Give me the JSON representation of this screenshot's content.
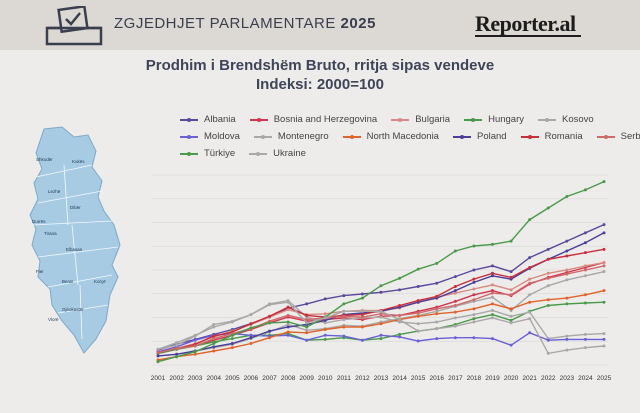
{
  "header": {
    "title_main": "ZGJEDHJET PARLAMENTARE ",
    "title_year": "2025",
    "brand": "Reporter.al",
    "ballot_icon": "ballot-box-icon"
  },
  "map": {
    "icon": "albania-map-icon",
    "regions": [
      "Shkodër",
      "Kukës",
      "Lezhë",
      "Dibër",
      "Durrës",
      "Tirana",
      "Elbasan",
      "Fier",
      "Berat",
      "Korçë",
      "Gjirokastër",
      "Vlorë"
    ],
    "fill_color": "#a8cbe4"
  },
  "chart_data": {
    "type": "line",
    "title": "Prodhim i Brendshëm Bruto, rritja sipas vendeve",
    "subtitle": "Indeksi: 2000=100",
    "xlabel": "",
    "ylabel": "",
    "grid": true,
    "legend_position": "top",
    "x": [
      "2001",
      "2002",
      "2003",
      "2004",
      "2005",
      "2006",
      "2007",
      "2008",
      "2009",
      "2010",
      "2011",
      "2012",
      "2013",
      "2014",
      "2015",
      "2016",
      "2017",
      "2018",
      "2019",
      "2020",
      "2021",
      "2022",
      "2023",
      "2024",
      "2025"
    ],
    "series": [
      {
        "name": "Albania",
        "color": "#5a4a9e",
        "values": [
          108,
          115,
          121,
          127,
          133,
          140,
          148,
          159,
          164,
          170,
          174,
          176,
          178,
          181,
          185,
          189,
          197,
          205,
          210,
          203,
          220,
          230,
          240,
          250,
          260
        ]
      },
      {
        "name": "Bosnia and Herzegovina",
        "color": "#d6334d",
        "values": [
          104,
          109,
          113,
          120,
          126,
          133,
          141,
          148,
          143,
          145,
          147,
          145,
          149,
          150,
          155,
          160,
          167,
          175,
          180,
          174,
          188,
          196,
          202,
          208,
          214
        ]
      },
      {
        "name": "Bulgaria",
        "color": "#d98a80",
        "values": [
          105,
          110,
          116,
          124,
          131,
          139,
          148,
          157,
          151,
          152,
          155,
          156,
          156,
          159,
          166,
          172,
          177,
          182,
          187,
          181,
          194,
          201,
          205,
          210,
          214
        ]
      },
      {
        "name": "Hungary",
        "color": "#4a9a4a",
        "values": [
          104,
          109,
          113,
          118,
          122,
          126,
          126,
          128,
          120,
          121,
          123,
          120,
          122,
          127,
          131,
          134,
          139,
          146,
          151,
          144,
          155,
          162,
          164,
          165,
          166
        ]
      },
      {
        "name": "Kosovo",
        "color": "#a8a8a8",
        "values": [
          109,
          117,
          126,
          136,
          142,
          151,
          164,
          168,
          148,
          141,
          145,
          147,
          148,
          142,
          140,
          142,
          147,
          151,
          156,
          149,
          154,
          122,
          125,
          127,
          128
        ]
      },
      {
        "name": "Moldova",
        "color": "#6a60d8",
        "values": [
          106,
          112,
          120,
          126,
          128,
          126,
          125,
          126,
          120,
          126,
          125,
          120,
          126,
          124,
          119,
          122,
          123,
          123,
          122,
          114,
          129,
          120,
          121,
          121,
          121
        ]
      },
      {
        "name": "Montenegro",
        "color": "#a8a8a8",
        "values": [
          101,
          103,
          107,
          111,
          115,
          122,
          130,
          139,
          132,
          134,
          138,
          137,
          142,
          146,
          150,
          155,
          161,
          167,
          172,
          156,
          175,
          186,
          193,
          198,
          203
        ]
      },
      {
        "name": "North Macedonia",
        "color": "#e2632a",
        "values": [
          96,
          100,
          103,
          107,
          111,
          116,
          123,
          130,
          129,
          133,
          136,
          136,
          140,
          145,
          149,
          152,
          154,
          158,
          164,
          158,
          166,
          169,
          171,
          175,
          180
        ]
      },
      {
        "name": "Poland",
        "color": "#4a3f9a",
        "values": [
          101,
          103,
          107,
          112,
          116,
          123,
          131,
          136,
          139,
          144,
          151,
          153,
          155,
          160,
          166,
          171,
          180,
          190,
          198,
          194,
          207,
          218,
          228,
          238,
          250
        ]
      },
      {
        "name": "Romania",
        "color": "#c92e3a",
        "values": [
          105,
          110,
          115,
          125,
          130,
          140,
          149,
          160,
          150,
          148,
          150,
          151,
          156,
          162,
          168,
          173,
          185,
          194,
          201,
          196,
          208,
          218,
          222,
          226,
          230
        ]
      },
      {
        "name": "Serbia",
        "color": "#cf6a6a",
        "values": [
          105,
          110,
          113,
          122,
          128,
          134,
          143,
          150,
          145,
          147,
          149,
          148,
          152,
          150,
          153,
          158,
          162,
          169,
          177,
          175,
          189,
          195,
          200,
          205,
          210
        ]
      },
      {
        "name": "Türkiye",
        "color": "#4a9a4a",
        "values": [
          94,
          100,
          106,
          116,
          126,
          135,
          141,
          142,
          136,
          148,
          164,
          171,
          186,
          195,
          206,
          213,
          228,
          234,
          236,
          240,
          266,
          280,
          294,
          302,
          312
        ]
      },
      {
        "name": "Ukraine",
        "color": "#a8a8a8",
        "values": [
          109,
          114,
          125,
          139,
          143,
          151,
          163,
          166,
          141,
          147,
          155,
          155,
          155,
          145,
          131,
          134,
          137,
          142,
          147,
          141,
          146,
          104,
          108,
          111,
          113
        ]
      }
    ],
    "ylim": [
      90,
      320
    ]
  }
}
